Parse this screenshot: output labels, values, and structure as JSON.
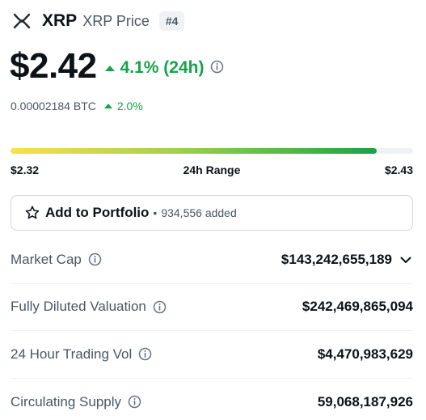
{
  "header": {
    "symbol": "XRP",
    "name": "XRP Price",
    "rank": "#4",
    "logo_icon": "xrp-logo-icon"
  },
  "price": {
    "value": "$2.42",
    "change": "4.1% (24h)",
    "change_color": "#16a34a"
  },
  "btc": {
    "value": "0.00002184 BTC",
    "change": "2.0%"
  },
  "range": {
    "low": "$2.32",
    "label": "24h Range",
    "high": "$2.43",
    "fill_fraction": 0.91
  },
  "portfolio": {
    "label": "Add to Portfolio",
    "separator": "•",
    "count": "934,556 added"
  },
  "stats": [
    {
      "label": "Market Cap",
      "value": "$143,242,655,189"
    },
    {
      "label": "Fully Diluted Valuation",
      "value": "$242,469,865,094"
    },
    {
      "label": "24 Hour Trading Vol",
      "value": "$4,470,983,629"
    },
    {
      "label": "Circulating Supply",
      "value": "59,068,187,926"
    }
  ]
}
